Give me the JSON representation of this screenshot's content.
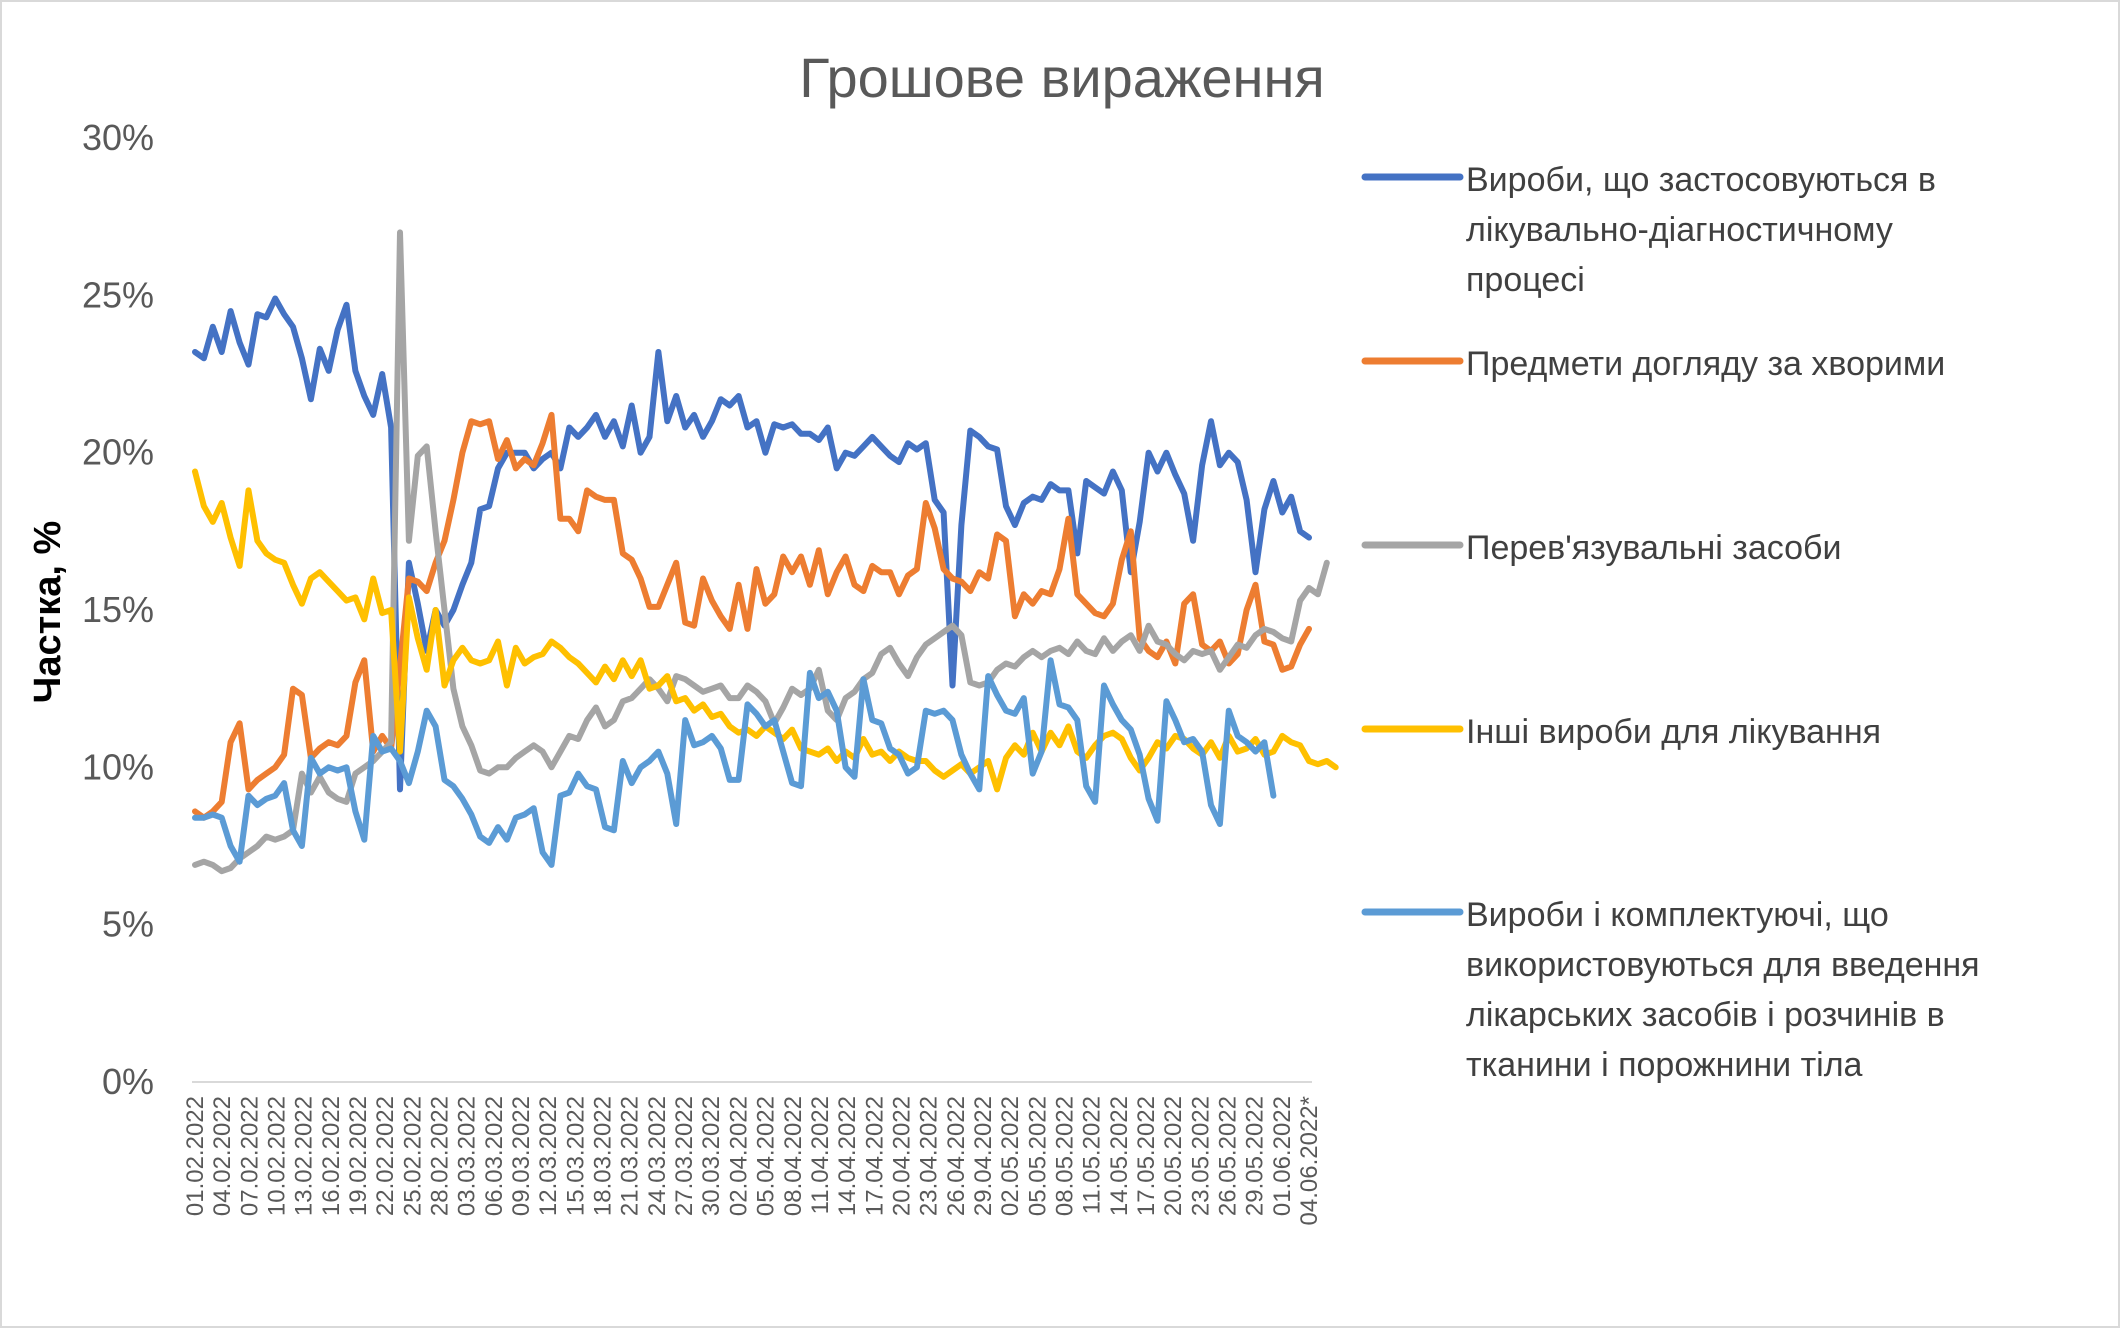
{
  "chart_data": {
    "type": "line",
    "title": "Грошове вираження",
    "xlabel": "",
    "ylabel": "Частка, %",
    "ylim": [
      0,
      30
    ],
    "y_ticks": [
      "0%",
      "5%",
      "10%",
      "15%",
      "20%",
      "25%",
      "30%"
    ],
    "y_tick_values": [
      0,
      5,
      10,
      15,
      20,
      25,
      30
    ],
    "grid": false,
    "legend_position": "right",
    "x_labels": [
      "01.02.2022",
      "04.02.2022",
      "07.02.2022",
      "10.02.2022",
      "13.02.2022",
      "16.02.2022",
      "19.02.2022",
      "22.02.2022",
      "25.02.2022",
      "28.02.2022",
      "03.03.2022",
      "06.03.2022",
      "09.03.2022",
      "12.03.2022",
      "15.03.2022",
      "18.03.2022",
      "21.03.2022",
      "24.03.2022",
      "27.03.2022",
      "30.03.2022",
      "02.04.2022",
      "05.04.2022",
      "08.04.2022",
      "11.04.2022",
      "14.04.2022",
      "17.04.2022",
      "20.04.2022",
      "23.04.2022",
      "26.04.2022",
      "29.04.2022",
      "02.05.2022",
      "05.05.2022",
      "08.05.2022",
      "11.05.2022",
      "14.05.2022",
      "17.05.2022",
      "20.05.2022",
      "23.05.2022",
      "26.05.2022",
      "29.05.2022",
      "01.06.2022",
      "04.06.2022*"
    ],
    "series": [
      {
        "name": "Вироби, що застосовуються в лікувально-діагностичному процесі",
        "color": "#4472C4",
        "values": [
          23.2,
          23,
          24,
          23.2,
          24.5,
          23.5,
          22.8,
          24.4,
          24.3,
          24.9,
          24.4,
          24,
          23,
          21.7,
          23.3,
          22.6,
          23.9,
          24.7,
          22.6,
          21.8,
          21.2,
          22.5,
          20.8,
          9.3,
          16.5,
          15.2,
          13.7,
          15,
          14.5,
          15,
          15.8,
          16.5,
          18.2,
          18.3,
          19.5,
          20,
          20,
          20,
          19.5,
          19.8,
          20,
          19.5,
          20.8,
          20.5,
          20.8,
          21.2,
          20.5,
          21,
          20.2,
          21.5,
          20,
          20.5,
          23.2,
          21,
          21.8,
          20.8,
          21.2,
          20.5,
          21,
          21.7,
          21.5,
          21.8,
          20.8,
          21,
          20,
          20.9,
          20.8,
          20.9,
          20.6,
          20.6,
          20.4,
          20.8,
          19.5,
          20,
          19.9,
          20.2,
          20.5,
          20.2,
          19.9,
          19.7,
          20.3,
          20.1,
          20.3,
          18.5,
          18.1,
          12.6,
          17.7,
          20.7,
          20.5,
          20.2,
          20.1,
          18.3,
          17.7,
          18.4,
          18.6,
          18.5,
          19,
          18.8,
          18.8,
          16.8,
          19.1,
          18.9,
          18.7,
          19.4,
          18.8,
          16.2,
          17.8,
          20,
          19.4,
          20,
          19.3,
          18.7,
          17.2,
          19.6,
          21,
          19.6,
          20,
          19.7,
          18.5,
          16.2,
          18.2,
          19.1,
          18.1,
          18.6,
          17.5,
          17.3
        ]
      },
      {
        "name": "Предмети догляду за хворими",
        "color": "#ED7D31",
        "values": [
          8.6,
          8.4,
          8.6,
          8.9,
          10.8,
          11.4,
          9.3,
          9.6,
          9.8,
          10,
          10.4,
          12.5,
          12.3,
          10.3,
          10.6,
          10.8,
          10.7,
          11,
          12.7,
          13.4,
          10.5,
          11,
          10.6,
          13.2,
          16,
          15.9,
          15.6,
          16.5,
          17.2,
          18.5,
          20,
          21,
          20.9,
          21,
          19.8,
          20.4,
          19.5,
          19.8,
          19.6,
          20.3,
          21.2,
          17.9,
          17.9,
          17.5,
          18.8,
          18.6,
          18.5,
          18.5,
          16.8,
          16.6,
          16,
          15.1,
          15.1,
          15.8,
          16.5,
          14.6,
          14.5,
          16,
          15.3,
          14.8,
          14.4,
          15.8,
          14.4,
          16.3,
          15.2,
          15.5,
          16.7,
          16.2,
          16.7,
          15.8,
          16.9,
          15.5,
          16.2,
          16.7,
          15.8,
          15.6,
          16.4,
          16.2,
          16.2,
          15.5,
          16.1,
          16.3,
          18.4,
          17.6,
          16.3,
          16,
          15.9,
          15.6,
          16.2,
          16,
          17.4,
          17.2,
          14.8,
          15.5,
          15.2,
          15.6,
          15.5,
          16.3,
          17.9,
          15.5,
          15.2,
          14.9,
          14.8,
          15.2,
          16.6,
          17.5,
          14.1,
          13.7,
          13.5,
          14,
          13.3,
          15.2,
          15.5,
          13.9,
          13.7,
          14,
          13.3,
          13.6,
          15,
          15.8,
          14,
          13.9,
          13.1,
          13.2,
          13.9,
          14.4
        ]
      },
      {
        "name": "Перев'язувальні засоби",
        "color": "#A5A5A5",
        "values": [
          6.9,
          7,
          6.9,
          6.7,
          6.8,
          7.1,
          7.3,
          7.5,
          7.8,
          7.7,
          7.8,
          8,
          9.8,
          9.2,
          9.7,
          9.2,
          9,
          8.9,
          9.8,
          10,
          10.2,
          10.5,
          10.8,
          27,
          17.2,
          19.9,
          20.2,
          17.5,
          15,
          12.5,
          11.3,
          10.7,
          9.9,
          9.8,
          10,
          10,
          10.3,
          10.5,
          10.7,
          10.5,
          10,
          10.5,
          11,
          10.9,
          11.5,
          11.9,
          11.3,
          11.5,
          12.1,
          12.2,
          12.5,
          12.8,
          12.5,
          12.1,
          12.9,
          12.8,
          12.6,
          12.4,
          12.5,
          12.6,
          12.2,
          12.2,
          12.6,
          12.4,
          12.1,
          11.4,
          11.9,
          12.5,
          12.3,
          12.5,
          13.1,
          11.8,
          11.5,
          12.2,
          12.4,
          12.8,
          13,
          13.6,
          13.8,
          13.3,
          12.9,
          13.5,
          13.9,
          14.1,
          14.3,
          14.5,
          14.2,
          12.7,
          12.6,
          12.7,
          13.1,
          13.3,
          13.2,
          13.5,
          13.7,
          13.5,
          13.7,
          13.8,
          13.6,
          14,
          13.7,
          13.6,
          14.1,
          13.7,
          14,
          14.2,
          13.7,
          14.5,
          14,
          13.9,
          13.6,
          13.4,
          13.7,
          13.6,
          13.7,
          13.1,
          13.5,
          13.9,
          13.8,
          14.2,
          14.4,
          14.3,
          14.1,
          14,
          15.3,
          15.7,
          15.5,
          16.5
        ]
      },
      {
        "name": "Інші вироби для лікування",
        "color": "#FFC000",
        "values": [
          19.4,
          18.3,
          17.8,
          18.4,
          17.3,
          16.4,
          18.8,
          17.2,
          16.8,
          16.6,
          16.5,
          15.8,
          15.2,
          16,
          16.2,
          15.9,
          15.6,
          15.3,
          15.4,
          14.7,
          16,
          14.9,
          15,
          10.5,
          15.4,
          14.1,
          13.1,
          15,
          12.6,
          13.4,
          13.8,
          13.4,
          13.3,
          13.4,
          14,
          12.6,
          13.8,
          13.3,
          13.5,
          13.6,
          14,
          13.8,
          13.5,
          13.3,
          13,
          12.7,
          13.2,
          12.8,
          13.4,
          12.9,
          13.4,
          12.5,
          12.6,
          12.9,
          12.1,
          12.2,
          11.8,
          12,
          11.6,
          11.7,
          11.3,
          11.1,
          11.2,
          11,
          11.3,
          11.1,
          10.9,
          11.2,
          10.6,
          10.5,
          10.4,
          10.6,
          10.2,
          10.5,
          10.3,
          10.9,
          10.4,
          10.5,
          10.2,
          10.5,
          10.3,
          10.2,
          10.2,
          9.9,
          9.7,
          9.9,
          10.1,
          9.8,
          10,
          10.2,
          9.3,
          10.3,
          10.7,
          10.4,
          11.1,
          10.5,
          11.1,
          10.7,
          11.3,
          10.5,
          10.3,
          10.7,
          11,
          11.1,
          10.9,
          10.3,
          9.9,
          10.3,
          10.8,
          10.6,
          11,
          10.9,
          10.6,
          10.4,
          10.8,
          10.3,
          11,
          10.5,
          10.6,
          10.9,
          10.4,
          10.5,
          11,
          10.8,
          10.7,
          10.2,
          10.1,
          10.2,
          10
        ]
      },
      {
        "name": "Вироби і комплектуючі, що використовуються для введення лікарських засобів і розчинів в тканини і порожнини тіла",
        "color": "#5B9BD5",
        "values": [
          8.4,
          8.4,
          8.5,
          8.4,
          7.5,
          7,
          9.1,
          8.8,
          9,
          9.1,
          9.5,
          8,
          7.5,
          10.3,
          9.8,
          10,
          9.9,
          10,
          8.6,
          7.7,
          11,
          10.5,
          10.6,
          10.2,
          9.5,
          10.5,
          11.8,
          11.3,
          9.6,
          9.4,
          9,
          8.5,
          7.8,
          7.6,
          8.1,
          7.7,
          8.4,
          8.5,
          8.7,
          7.3,
          6.9,
          9.1,
          9.2,
          9.8,
          9.4,
          9.3,
          8.1,
          8,
          10.2,
          9.5,
          10,
          10.2,
          10.5,
          9.8,
          8.2,
          11.5,
          10.7,
          10.8,
          11,
          10.6,
          9.6,
          9.6,
          12,
          11.7,
          11.3,
          11.5,
          10.5,
          9.5,
          9.4,
          13,
          12.2,
          12.4,
          11.8,
          10,
          9.7,
          12.8,
          11.5,
          11.4,
          10.6,
          10.4,
          9.8,
          10,
          11.8,
          11.7,
          11.8,
          11.5,
          10.4,
          9.8,
          9.3,
          12.9,
          12.3,
          11.8,
          11.7,
          12.2,
          9.8,
          10.5,
          13.4,
          12,
          11.9,
          11.5,
          9.4,
          8.9,
          12.6,
          12,
          11.5,
          11.2,
          10.4,
          9,
          8.3,
          12.1,
          11.5,
          10.8,
          10.9,
          10.5,
          8.8,
          8.2,
          11.8,
          11,
          10.8,
          10.5,
          10.8,
          9.1
        ]
      }
    ]
  }
}
